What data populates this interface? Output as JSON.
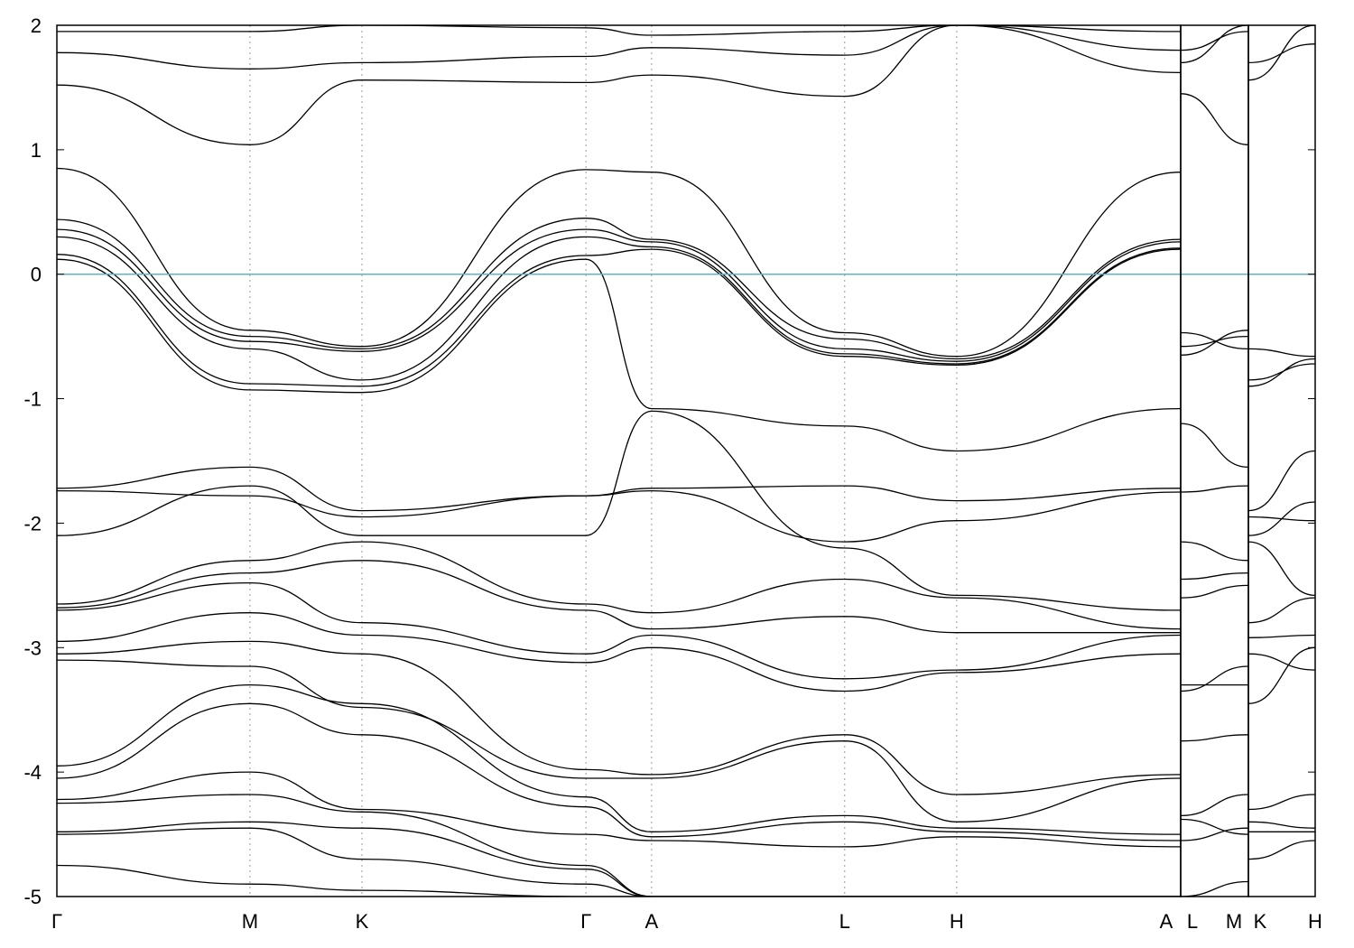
{
  "chart_data": {
    "type": "line",
    "title": "",
    "xlabel": "",
    "ylabel": "",
    "ylim": [
      -5,
      2
    ],
    "yticks": [
      2,
      1,
      0,
      -1,
      -2,
      -3,
      -4,
      -5
    ],
    "grid": "vertical dashed lines at high-symmetry points",
    "legend": "none",
    "fermi_level": {
      "y": 0,
      "color": "#5fb4c8"
    },
    "band_color": "#000000",
    "panels": [
      {
        "name": "main",
        "x_range": [
          0,
          14.55
        ],
        "kpoints": [
          {
            "label": "Γ",
            "x": 0
          },
          {
            "label": "M",
            "x": 2.5
          },
          {
            "label": "K",
            "x": 3.95
          },
          {
            "label": "Γ",
            "x": 6.85
          },
          {
            "label": "A",
            "x": 7.7
          },
          {
            "label": "L",
            "x": 10.2
          },
          {
            "label": "H",
            "x": 11.65
          },
          {
            "label": "A",
            "x": 14.55
          }
        ],
        "bands": [
          {
            "x": [
              0,
              2.5,
              3.95,
              6.85,
              7.7,
              10.2,
              11.65,
              14.55
            ],
            "y": [
              0.85,
              -0.45,
              -0.58,
              0.84,
              0.82,
              -0.47,
              -0.66,
              0.82
            ]
          },
          {
            "x": [
              0,
              2.5,
              3.95,
              6.85,
              7.7,
              10.2,
              11.65,
              14.55
            ],
            "y": [
              0.44,
              -0.5,
              -0.6,
              0.45,
              0.28,
              -0.52,
              -0.68,
              0.28
            ]
          },
          {
            "x": [
              0,
              2.5,
              3.95,
              6.85,
              7.7,
              10.2,
              11.65,
              14.55
            ],
            "y": [
              0.36,
              -0.54,
              -0.62,
              0.36,
              0.26,
              -0.6,
              -0.7,
              0.26
            ]
          },
          {
            "x": [
              0,
              2.5,
              3.95,
              6.85,
              7.7,
              10.2,
              11.65,
              14.55
            ],
            "y": [
              0.3,
              -0.6,
              -0.85,
              0.3,
              0.22,
              -0.64,
              -0.72,
              0.21
            ]
          },
          {
            "x": [
              0,
              2.5,
              3.95,
              6.85,
              7.7,
              10.2,
              11.65,
              14.55
            ],
            "y": [
              0.16,
              -0.88,
              -0.9,
              0.15,
              0.2,
              -0.66,
              -0.73,
              0.2
            ]
          },
          {
            "x": [
              0,
              2.5,
              3.95,
              6.85,
              7.7,
              10.2,
              11.65,
              14.55
            ],
            "y": [
              0.12,
              -0.93,
              -0.95,
              0.12,
              -1.08,
              -1.22,
              -1.42,
              -1.08
            ]
          },
          {
            "x": [
              0,
              2.5,
              3.95,
              6.85,
              7.7,
              10.2,
              11.65,
              14.55
            ],
            "y": [
              1.52,
              1.04,
              1.56,
              1.54,
              1.6,
              1.43,
              2.0,
              1.62
            ]
          },
          {
            "x": [
              0,
              2.5,
              3.95,
              6.85,
              7.7,
              10.2,
              11.65,
              14.55
            ],
            "y": [
              1.78,
              1.65,
              1.7,
              1.75,
              1.82,
              1.76,
              2.0,
              1.8
            ]
          },
          {
            "x": [
              0,
              2.5,
              3.95,
              6.85,
              7.7,
              10.2,
              11.65,
              14.55
            ],
            "y": [
              1.95,
              1.95,
              2.0,
              1.98,
              1.92,
              1.95,
              2.0,
              1.95
            ]
          },
          {
            "x": [
              0,
              2.5,
              3.95,
              6.85,
              7.7,
              10.2,
              11.65,
              14.55
            ],
            "y": [
              -1.72,
              -1.55,
              -1.9,
              -1.78,
              -1.72,
              -1.7,
              -1.82,
              -1.72
            ]
          },
          {
            "x": [
              0,
              2.5,
              3.95,
              6.85,
              7.7,
              10.2,
              11.65,
              14.55
            ],
            "y": [
              -1.74,
              -1.78,
              -1.95,
              -1.78,
              -1.74,
              -2.15,
              -1.98,
              -1.75
            ]
          },
          {
            "x": [
              0,
              2.5,
              3.95,
              6.85,
              7.7,
              10.2,
              11.65,
              14.55
            ],
            "y": [
              -2.1,
              -1.7,
              -2.1,
              -2.1,
              -1.1,
              -2.2,
              -2.58,
              -2.7
            ]
          },
          {
            "x": [
              0,
              2.5,
              3.95,
              6.85,
              7.7,
              10.2,
              11.65,
              14.55
            ],
            "y": [
              -2.65,
              -2.3,
              -2.15,
              -2.65,
              -2.72,
              -2.45,
              -2.6,
              -2.85
            ]
          },
          {
            "x": [
              0,
              2.5,
              3.95,
              6.85,
              7.7,
              10.2,
              11.65,
              14.55
            ],
            "y": [
              -2.68,
              -2.4,
              -2.3,
              -2.7,
              -2.85,
              -2.75,
              -2.88,
              -2.88
            ]
          },
          {
            "x": [
              0,
              2.5,
              3.95,
              6.85,
              7.7,
              10.2,
              11.65,
              14.55
            ],
            "y": [
              -2.7,
              -2.48,
              -2.8,
              -3.05,
              -2.9,
              -3.25,
              -3.18,
              -2.9
            ]
          },
          {
            "x": [
              0,
              2.5,
              3.95,
              6.85,
              7.7,
              10.2,
              11.65,
              14.55
            ],
            "y": [
              -2.95,
              -2.72,
              -2.9,
              -3.12,
              -3.0,
              -3.35,
              -3.2,
              -3.05
            ]
          },
          {
            "x": [
              0,
              2.5,
              3.95,
              6.85,
              7.7,
              10.2,
              11.65,
              14.55
            ],
            "y": [
              -3.05,
              -2.95,
              -3.05,
              -3.98,
              -4.02,
              -3.7,
              -4.18,
              -4.02
            ]
          },
          {
            "x": [
              0,
              2.5,
              3.95,
              6.85,
              7.7,
              10.2,
              11.65,
              14.55
            ],
            "y": [
              -3.1,
              -3.15,
              -3.48,
              -4.05,
              -4.05,
              -3.75,
              -4.4,
              -4.05
            ]
          },
          {
            "x": [
              0,
              2.5,
              3.95,
              6.85,
              7.7,
              10.2,
              11.65,
              14.55
            ],
            "y": [
              -3.95,
              -3.3,
              -3.45,
              -4.2,
              -4.48,
              -4.35,
              -4.45,
              -4.5
            ]
          },
          {
            "x": [
              0,
              2.5,
              3.95,
              6.85,
              7.7,
              10.2,
              11.65,
              14.55
            ],
            "y": [
              -4.05,
              -3.45,
              -3.7,
              -4.28,
              -4.52,
              -4.4,
              -4.48,
              -4.55
            ]
          },
          {
            "x": [
              0,
              2.5,
              3.95,
              6.85,
              7.7,
              10.2,
              11.65,
              14.55
            ],
            "y": [
              -4.22,
              -4.0,
              -4.3,
              -4.5,
              -4.55,
              -4.6,
              -4.52,
              -4.6
            ]
          },
          {
            "x": [
              0,
              2.5,
              3.95,
              6.85,
              7.7,
              10.2,
              11.65,
              14.55
            ],
            "y": [
              -4.25,
              -4.18,
              -4.32,
              -4.75,
              -5.0,
              -5.0,
              -5.0,
              -5.0
            ]
          },
          {
            "x": [
              0,
              2.5,
              3.95,
              6.85,
              7.7,
              10.2,
              11.65,
              14.55
            ],
            "y": [
              -4.48,
              -4.4,
              -4.45,
              -4.78,
              -5.0,
              -5.0,
              -5.0,
              -5.0
            ]
          },
          {
            "x": [
              0,
              2.5,
              3.95,
              6.85,
              7.7,
              10.2,
              11.65,
              14.55
            ],
            "y": [
              -4.5,
              -4.45,
              -4.7,
              -4.9,
              -5.0,
              -5.0,
              -5.0,
              -5.0
            ]
          },
          {
            "x": [
              0,
              2.5,
              3.95,
              6.85,
              7.7,
              10.2,
              11.65,
              14.55
            ],
            "y": [
              -4.75,
              -4.9,
              -4.95,
              -5.0,
              -5.0,
              -5.0,
              -5.0,
              -5.0
            ]
          }
        ]
      },
      {
        "name": "L-M",
        "x_range": [
          14.55,
          15.4
        ],
        "kpoints": [
          {
            "label": "L",
            "x": 14.55
          },
          {
            "label": "M",
            "x": 15.4
          }
        ],
        "bands": [
          {
            "x": [
              14.55,
              15.4
            ],
            "y": [
              1.45,
              1.04
            ]
          },
          {
            "x": [
              14.55,
              15.4
            ],
            "y": [
              1.7,
              2.0
            ]
          },
          {
            "x": [
              14.55,
              15.4
            ],
            "y": [
              1.8,
              1.95
            ]
          },
          {
            "x": [
              14.55,
              15.4
            ],
            "y": [
              -0.65,
              -0.45
            ]
          },
          {
            "x": [
              14.55,
              15.4
            ],
            "y": [
              -0.58,
              -0.5
            ]
          },
          {
            "x": [
              14.55,
              15.4
            ],
            "y": [
              -0.47,
              -0.6
            ]
          },
          {
            "x": [
              14.55,
              15.4
            ],
            "y": [
              -1.2,
              -1.55
            ]
          },
          {
            "x": [
              14.55,
              15.4
            ],
            "y": [
              -1.75,
              -1.7
            ]
          },
          {
            "x": [
              14.55,
              15.4
            ],
            "y": [
              -2.15,
              -2.3
            ]
          },
          {
            "x": [
              14.55,
              15.4
            ],
            "y": [
              -2.45,
              -2.4
            ]
          },
          {
            "x": [
              14.55,
              15.4
            ],
            "y": [
              -2.6,
              -2.5
            ]
          },
          {
            "x": [
              14.55,
              15.4
            ],
            "y": [
              -3.3,
              -3.3
            ]
          },
          {
            "x": [
              14.55,
              15.4
            ],
            "y": [
              -3.35,
              -3.15
            ]
          },
          {
            "x": [
              14.55,
              15.4
            ],
            "y": [
              -3.75,
              -3.7
            ]
          },
          {
            "x": [
              14.55,
              15.4
            ],
            "y": [
              -4.35,
              -4.18
            ]
          },
          {
            "x": [
              14.55,
              15.4
            ],
            "y": [
              -4.38,
              -4.5
            ]
          },
          {
            "x": [
              14.55,
              15.4
            ],
            "y": [
              -4.55,
              -4.45
            ]
          },
          {
            "x": [
              14.55,
              15.4
            ],
            "y": [
              -5.0,
              -4.88
            ]
          }
        ]
      },
      {
        "name": "K-H",
        "x_range": [
          15.4,
          16.25
        ],
        "kpoints": [
          {
            "label": "K",
            "x": 15.4
          },
          {
            "label": "H",
            "x": 16.25
          }
        ],
        "bands": [
          {
            "x": [
              15.4,
              16.25
            ],
            "y": [
              1.56,
              2.0
            ]
          },
          {
            "x": [
              15.4,
              16.25
            ],
            "y": [
              1.7,
              1.85
            ]
          },
          {
            "x": [
              15.4,
              16.25
            ],
            "y": [
              -0.6,
              -0.66
            ]
          },
          {
            "x": [
              15.4,
              16.25
            ],
            "y": [
              -0.85,
              -0.72
            ]
          },
          {
            "x": [
              15.4,
              16.25
            ],
            "y": [
              -0.9,
              -0.68
            ]
          },
          {
            "x": [
              15.4,
              16.25
            ],
            "y": [
              -1.9,
              -1.42
            ]
          },
          {
            "x": [
              15.4,
              16.25
            ],
            "y": [
              -1.95,
              -1.98
            ]
          },
          {
            "x": [
              15.4,
              16.25
            ],
            "y": [
              -2.1,
              -1.83
            ]
          },
          {
            "x": [
              15.4,
              16.25
            ],
            "y": [
              -2.15,
              -2.58
            ]
          },
          {
            "x": [
              15.4,
              16.25
            ],
            "y": [
              -2.8,
              -2.6
            ]
          },
          {
            "x": [
              15.4,
              16.25
            ],
            "y": [
              -2.92,
              -2.9
            ]
          },
          {
            "x": [
              15.4,
              16.25
            ],
            "y": [
              -3.05,
              -3.18
            ]
          },
          {
            "x": [
              15.4,
              16.25
            ],
            "y": [
              -3.45,
              -3.0
            ]
          },
          {
            "x": [
              15.4,
              16.25
            ],
            "y": [
              -4.3,
              -4.18
            ]
          },
          {
            "x": [
              15.4,
              16.25
            ],
            "y": [
              -4.4,
              -4.45
            ]
          },
          {
            "x": [
              15.4,
              16.25
            ],
            "y": [
              -4.48,
              -4.48
            ]
          },
          {
            "x": [
              15.4,
              16.25
            ],
            "y": [
              -4.7,
              -4.55
            ]
          }
        ]
      }
    ]
  }
}
